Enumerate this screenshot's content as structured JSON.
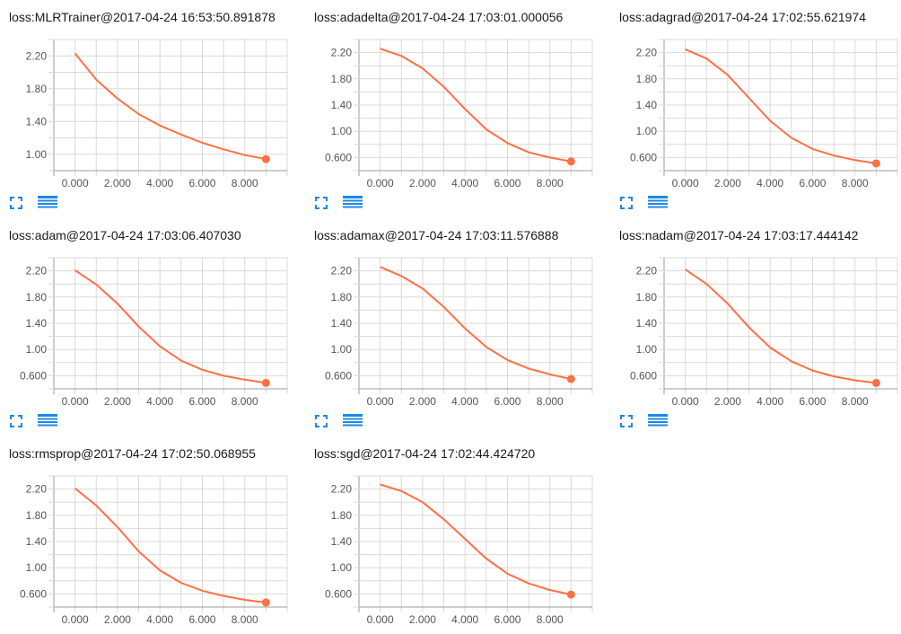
{
  "colors": {
    "line": "#ff7043",
    "dot": "#ff7043",
    "grid": "#d9d9d9",
    "icon": "#1e88e5"
  },
  "icons": {
    "expand": "expand-icon",
    "data": "data-table-icon"
  },
  "x_ticks": [
    "0.000",
    "2.000",
    "4.000",
    "6.000",
    "8.000"
  ],
  "chart_data": [
    {
      "type": "line",
      "title": "loss:MLRTrainer@2017-04-24 16:53:50.891878",
      "x": [
        0,
        1,
        2,
        3,
        4,
        5,
        6,
        7,
        8,
        9
      ],
      "series": [
        {
          "values": [
            2.23,
            1.91,
            1.68,
            1.49,
            1.35,
            1.24,
            1.14,
            1.06,
            0.99,
            0.94
          ]
        }
      ],
      "xlim": [
        -1,
        10
      ],
      "ylim": [
        0.8,
        2.4
      ],
      "y_ticks": [
        "1.00",
        "1.40",
        "1.80",
        "2.20"
      ],
      "grid": true
    },
    {
      "type": "line",
      "title": "loss:adadelta@2017-04-24 17:03:01.000056",
      "x": [
        0,
        1,
        2,
        3,
        4,
        5,
        6,
        7,
        8,
        9
      ],
      "series": [
        {
          "values": [
            2.26,
            2.15,
            1.96,
            1.68,
            1.34,
            1.03,
            0.82,
            0.68,
            0.6,
            0.54
          ]
        }
      ],
      "xlim": [
        -1,
        10
      ],
      "ylim": [
        0.4,
        2.4
      ],
      "y_ticks": [
        "0.600",
        "1.00",
        "1.40",
        "1.80",
        "2.20"
      ],
      "grid": true
    },
    {
      "type": "line",
      "title": "loss:adagrad@2017-04-24 17:02:55.621974",
      "x": [
        0,
        1,
        2,
        3,
        4,
        5,
        6,
        7,
        8,
        9
      ],
      "series": [
        {
          "values": [
            2.25,
            2.11,
            1.86,
            1.51,
            1.16,
            0.9,
            0.73,
            0.63,
            0.56,
            0.51
          ]
        }
      ],
      "xlim": [
        -1,
        10
      ],
      "ylim": [
        0.4,
        2.4
      ],
      "y_ticks": [
        "0.600",
        "1.00",
        "1.40",
        "1.80",
        "2.20"
      ],
      "grid": true
    },
    {
      "type": "line",
      "title": "loss:adam@2017-04-24 17:03:06.407030",
      "x": [
        0,
        1,
        2,
        3,
        4,
        5,
        6,
        7,
        8,
        9
      ],
      "series": [
        {
          "values": [
            2.21,
            1.99,
            1.7,
            1.35,
            1.05,
            0.83,
            0.69,
            0.6,
            0.54,
            0.49
          ]
        }
      ],
      "xlim": [
        -1,
        10
      ],
      "ylim": [
        0.4,
        2.4
      ],
      "y_ticks": [
        "0.600",
        "1.00",
        "1.40",
        "1.80",
        "2.20"
      ],
      "grid": true
    },
    {
      "type": "line",
      "title": "loss:adamax@2017-04-24 17:03:11.576888",
      "x": [
        0,
        1,
        2,
        3,
        4,
        5,
        6,
        7,
        8,
        9
      ],
      "series": [
        {
          "values": [
            2.26,
            2.12,
            1.93,
            1.65,
            1.32,
            1.04,
            0.84,
            0.71,
            0.62,
            0.55
          ]
        }
      ],
      "xlim": [
        -1,
        10
      ],
      "ylim": [
        0.4,
        2.4
      ],
      "y_ticks": [
        "0.600",
        "1.00",
        "1.40",
        "1.80",
        "2.20"
      ],
      "grid": true
    },
    {
      "type": "line",
      "title": "loss:nadam@2017-04-24 17:03:17.444142",
      "x": [
        0,
        1,
        2,
        3,
        4,
        5,
        6,
        7,
        8,
        9
      ],
      "series": [
        {
          "values": [
            2.22,
            2.0,
            1.7,
            1.34,
            1.03,
            0.82,
            0.68,
            0.59,
            0.53,
            0.49
          ]
        }
      ],
      "xlim": [
        -1,
        10
      ],
      "ylim": [
        0.4,
        2.4
      ],
      "y_ticks": [
        "0.600",
        "1.00",
        "1.40",
        "1.80",
        "2.20"
      ],
      "grid": true
    },
    {
      "type": "line",
      "title": "loss:rmsprop@2017-04-24 17:02:50.068955",
      "x": [
        0,
        1,
        2,
        3,
        4,
        5,
        6,
        7,
        8,
        9
      ],
      "series": [
        {
          "values": [
            2.21,
            1.95,
            1.62,
            1.25,
            0.96,
            0.77,
            0.65,
            0.57,
            0.51,
            0.47
          ]
        }
      ],
      "xlim": [
        -1,
        10
      ],
      "ylim": [
        0.4,
        2.4
      ],
      "y_ticks": [
        "0.600",
        "1.00",
        "1.40",
        "1.80",
        "2.20"
      ],
      "grid": true
    },
    {
      "type": "line",
      "title": "loss:sgd@2017-04-24 17:02:44.424720",
      "x": [
        0,
        1,
        2,
        3,
        4,
        5,
        6,
        7,
        8,
        9
      ],
      "series": [
        {
          "values": [
            2.27,
            2.17,
            2.0,
            1.74,
            1.44,
            1.14,
            0.91,
            0.76,
            0.66,
            0.59
          ]
        }
      ],
      "xlim": [
        -1,
        10
      ],
      "ylim": [
        0.4,
        2.4
      ],
      "y_ticks": [
        "0.600",
        "1.00",
        "1.40",
        "1.80",
        "2.20"
      ],
      "grid": true
    }
  ]
}
